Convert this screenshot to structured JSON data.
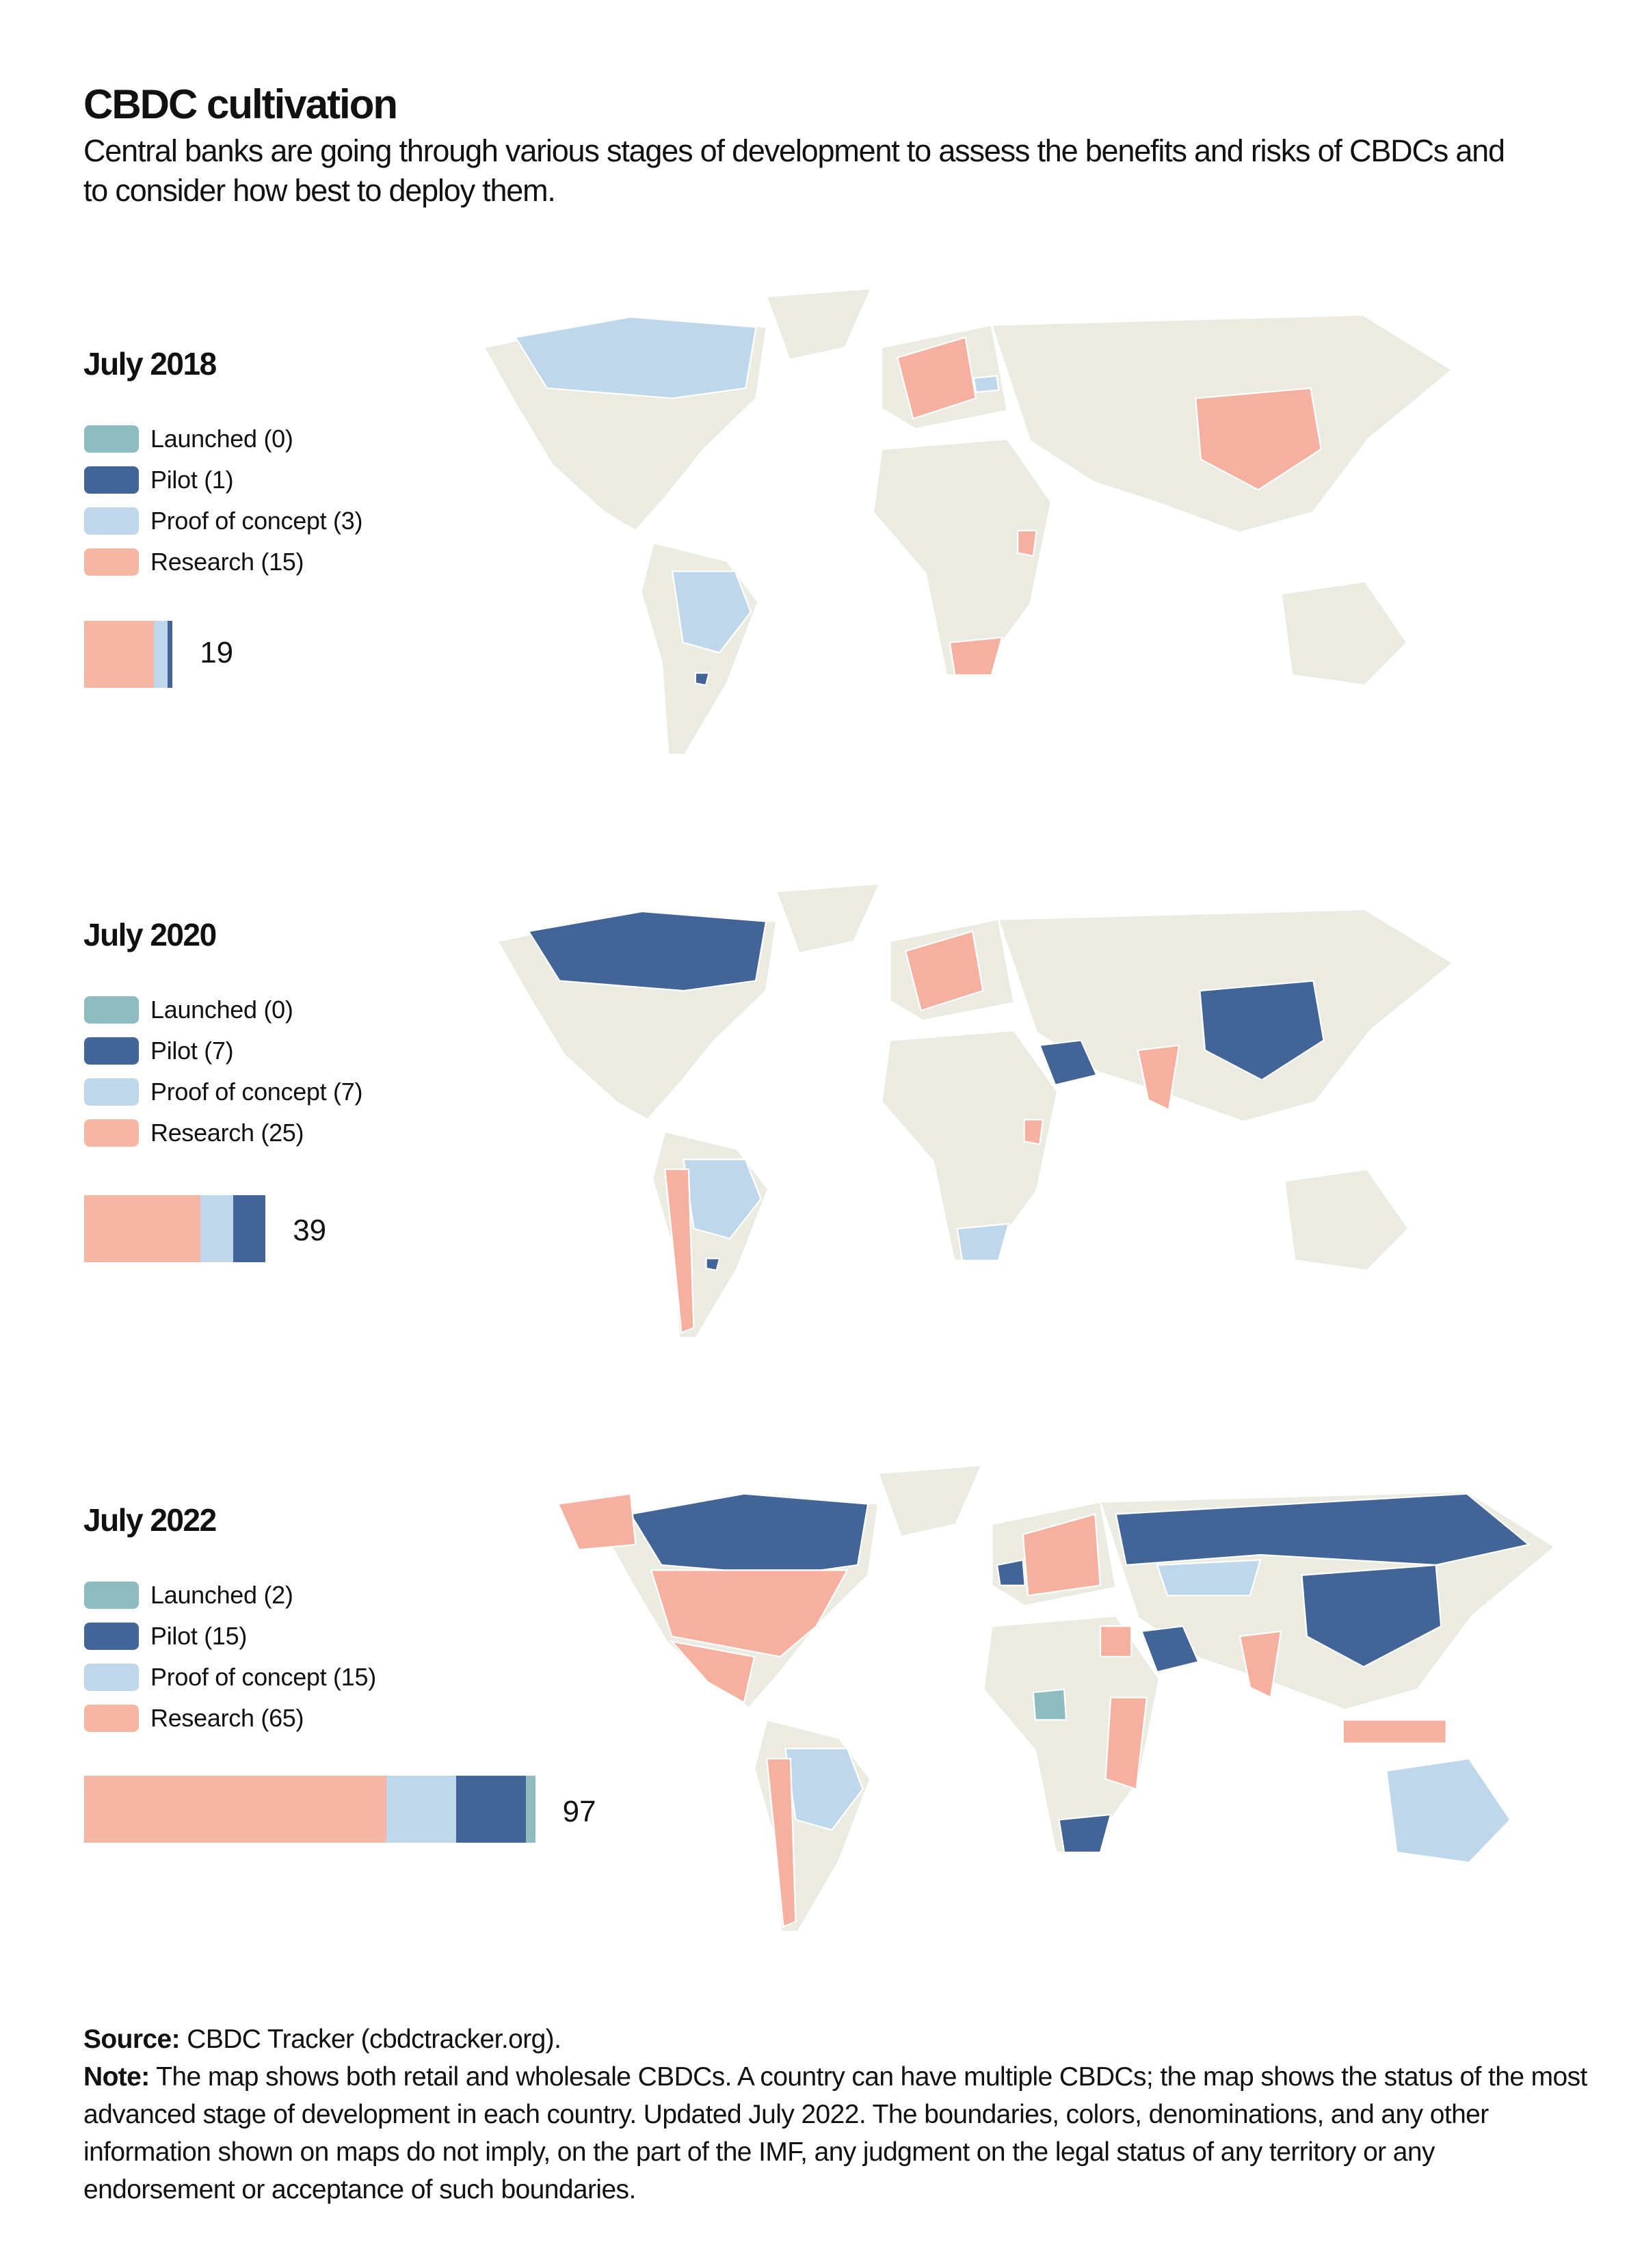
{
  "title": "CBDC cultivation",
  "subtitle": "Central banks are going through various stages of development to assess the benefits and risks of CBDCs and to consider how best to deploy them.",
  "colors": {
    "launched": "#8fbcc0",
    "pilot": "#426496",
    "proof_of_concept": "#bfd7ea",
    "research": "#f6b6a5",
    "land": "#ecebe1"
  },
  "sections": [
    {
      "heading": "July 2018",
      "legend": [
        "Launched (0)",
        "Pilot (1)",
        "Proof of concept (3)",
        "Research (15)"
      ],
      "counts": {
        "research": 15,
        "proof_of_concept": 3,
        "pilot": 1,
        "launched": 0
      },
      "total": "19"
    },
    {
      "heading": "July 2020",
      "legend": [
        "Launched (0)",
        "Pilot (7)",
        "Proof of concept (7)",
        "Research (25)"
      ],
      "counts": {
        "research": 25,
        "proof_of_concept": 7,
        "pilot": 7,
        "launched": 0
      },
      "total": "39"
    },
    {
      "heading": "July 2022",
      "legend": [
        "Launched (2)",
        "Pilot (15)",
        "Proof of concept (15)",
        "Research (65)"
      ],
      "counts": {
        "research": 65,
        "proof_of_concept": 15,
        "pilot": 15,
        "launched": 2
      },
      "total": "97"
    }
  ],
  "footer": {
    "source_label": "Source:",
    "source_text": "CBDC Tracker (cbdctracker.org).",
    "note_label": "Note:",
    "note_text": "The map shows both retail and wholesale CBDCs. A country can have multiple CBDCs; the map shows the status of the most advanced stage of development in each country. Updated July 2022. The boundaries, colors, denominations, and any other information shown on maps do not imply, on the part of the IMF, any judgment on the legal status of any territory or any endorsement or acceptance of such boundaries."
  }
}
